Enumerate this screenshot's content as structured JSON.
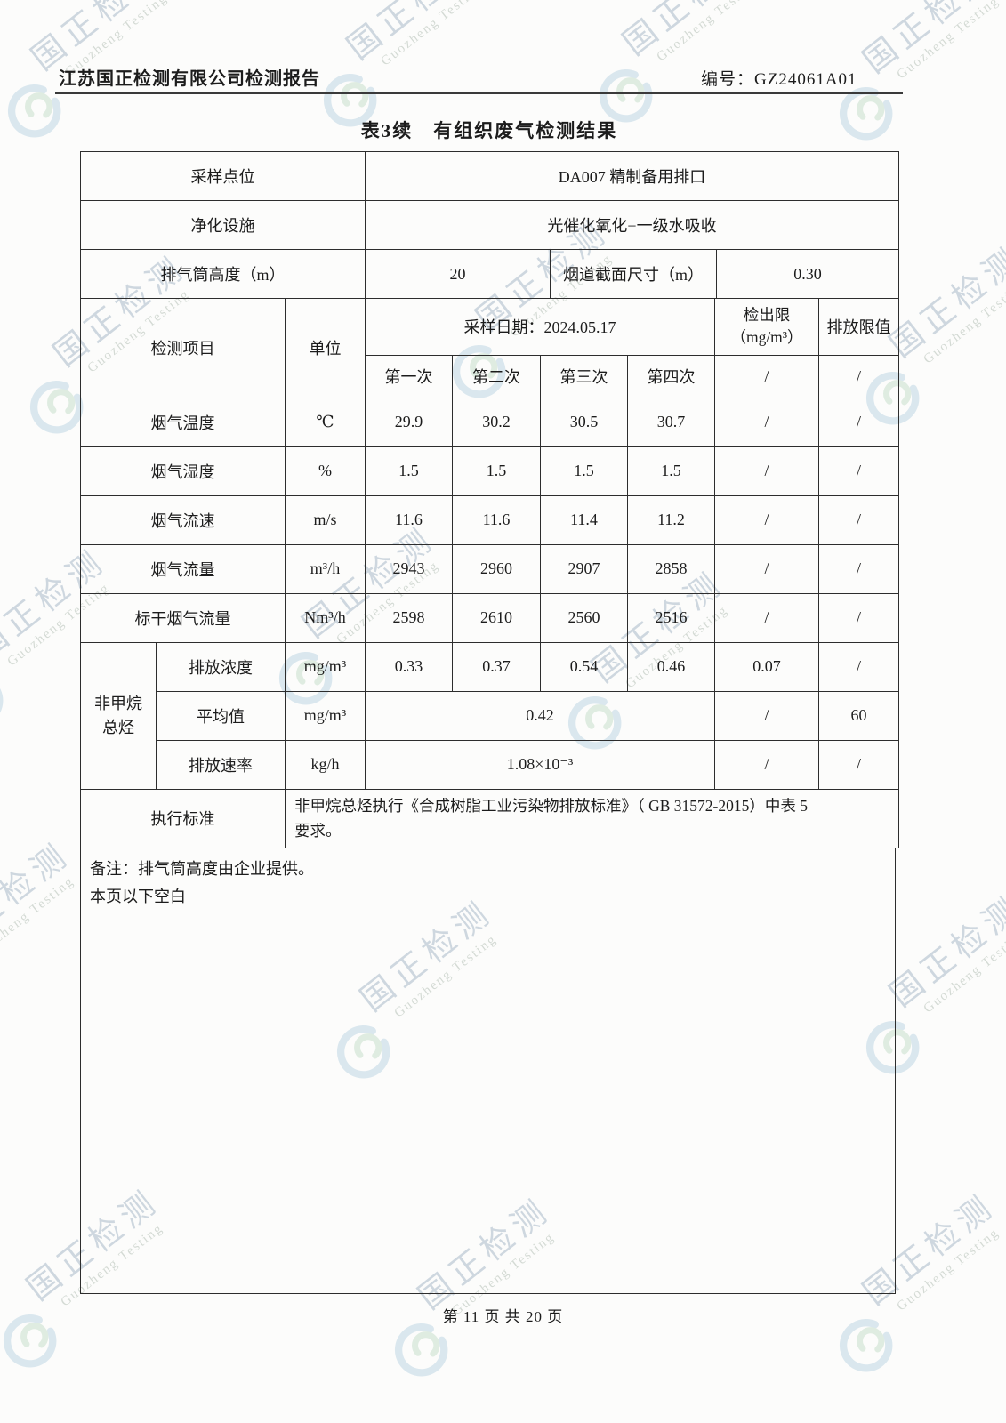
{
  "header": {
    "company_report_title": "江苏国正检测有限公司检测报告",
    "report_no": "编号：GZ24061A01"
  },
  "table_title": "表3续　有组织废气检测结果",
  "info": {
    "sampling_point_label": "采样点位",
    "sampling_point_value": "DA007 精制备用排口",
    "purification_label": "净化设施",
    "purification_value": "光催化氧化+一级水吸收",
    "stack_height_label": "排气筒高度（m）",
    "stack_height_value": "20",
    "duct_size_label": "烟道截面尺寸（m）",
    "duct_size_value": "0.30"
  },
  "measure": {
    "item_label": "检测项目",
    "unit_label": "单位",
    "date_label": "采样日期：2024.05.17",
    "detection_limit_line1": "检出限",
    "detection_limit_line2": "（mg/m³）",
    "emission_limit_label": "排放限值",
    "runs": [
      "第一次",
      "第二次",
      "第三次",
      "第四次"
    ],
    "detection_limit_slash": "/",
    "emission_limit_slash": "/"
  },
  "rows": [
    {
      "name": "烟气温度",
      "unit": "℃",
      "values": [
        "29.9",
        "30.2",
        "30.5",
        "30.7"
      ],
      "detection_limit": "/",
      "emission_limit": "/"
    },
    {
      "name": "烟气湿度",
      "unit": "%",
      "values": [
        "1.5",
        "1.5",
        "1.5",
        "1.5"
      ],
      "detection_limit": "/",
      "emission_limit": "/"
    },
    {
      "name": "烟气流速",
      "unit": "m/s",
      "values": [
        "11.6",
        "11.6",
        "11.4",
        "11.2"
      ],
      "detection_limit": "/",
      "emission_limit": "/"
    },
    {
      "name": "烟气流量",
      "unit": "m³/h",
      "values": [
        "2943",
        "2960",
        "2907",
        "2858"
      ],
      "detection_limit": "/",
      "emission_limit": "/"
    },
    {
      "name": "标干烟气流量",
      "unit": "Nm³/h",
      "values": [
        "2598",
        "2610",
        "2560",
        "2516"
      ],
      "detection_limit": "/",
      "emission_limit": "/"
    }
  ],
  "nmhc": {
    "group_line1": "非甲烷",
    "group_line2": "总烃",
    "concentration": {
      "name": "排放浓度",
      "unit": "mg/m³",
      "values": [
        "0.33",
        "0.37",
        "0.54",
        "0.46"
      ],
      "detection_limit": "0.07",
      "emission_limit": "/"
    },
    "average": {
      "name": "平均值",
      "unit": "mg/m³",
      "value": "0.42",
      "detection_limit": "/",
      "emission_limit": "60"
    },
    "rate": {
      "name": "排放速率",
      "unit": "kg/h",
      "value": "1.08×10⁻³",
      "detection_limit": "/",
      "emission_limit": "/"
    }
  },
  "standard": {
    "label": "执行标准",
    "text": "非甲烷总烃执行《合成树脂工业污染物排放标准》（ GB 31572-2015）中表 5\n要求。"
  },
  "remarks": {
    "line1": "备注：排气筒高度由企业提供。",
    "line2": "本页以下空白"
  },
  "footer": {
    "page_info": "第 11 页 共 20 页"
  },
  "watermark": {
    "cn": "国正检测",
    "en": "Guozheng Testing"
  }
}
